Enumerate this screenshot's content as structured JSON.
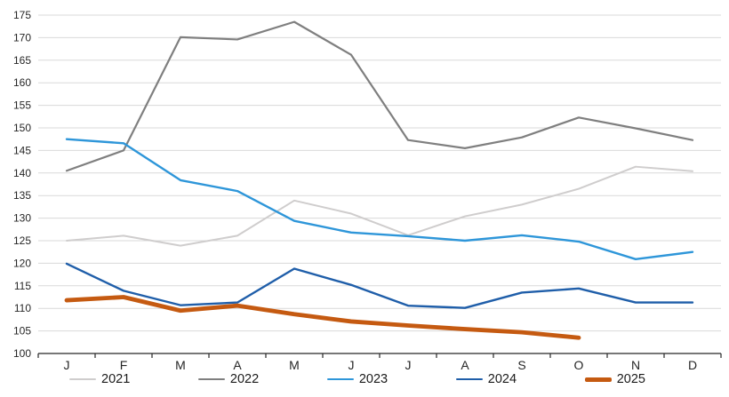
{
  "chart_data": {
    "type": "line",
    "title": "",
    "xlabel": "",
    "ylabel": "",
    "categories": [
      "J",
      "F",
      "M",
      "A",
      "M",
      "J",
      "J",
      "A",
      "S",
      "O",
      "N",
      "D"
    ],
    "series": [
      {
        "name": "2021",
        "color": "#cfcdcd",
        "stroke_width": 2,
        "values": [
          125,
          126.1,
          123.9,
          126.1,
          133.9,
          131,
          126.2,
          130.4,
          133,
          136.5,
          141.4,
          140.4
        ]
      },
      {
        "name": "2022",
        "color": "#7f7f7f",
        "stroke_width": 2.2,
        "values": [
          140.5,
          145,
          170.1,
          169.6,
          173.5,
          166.2,
          147.3,
          145.5,
          147.9,
          152.3,
          149.9,
          147.3
        ]
      },
      {
        "name": "2023",
        "color": "#2e96d9",
        "stroke_width": 2.4,
        "values": [
          147.5,
          146.6,
          138.4,
          136,
          129.4,
          126.8,
          126,
          125,
          126.2,
          124.8,
          120.9,
          122.5
        ]
      },
      {
        "name": "2024",
        "color": "#1f5ea9",
        "stroke_width": 2.4,
        "values": [
          119.9,
          113.9,
          110.7,
          111.3,
          118.8,
          115.2,
          110.6,
          110.1,
          113.5,
          114.4,
          111.3,
          111.3
        ]
      },
      {
        "name": "2025",
        "color": "#c55a11",
        "stroke_width": 4.8,
        "values": [
          111.8,
          112.5,
          109.5,
          110.6,
          108.7,
          107.1,
          106.2,
          105.4,
          104.7,
          103.5,
          null,
          null
        ]
      }
    ],
    "ylim": [
      100,
      175
    ],
    "ytick_step": 5,
    "y_tick_labels": [
      "100",
      "105",
      "110",
      "115",
      "120",
      "125",
      "130",
      "135",
      "140",
      "145",
      "150",
      "155",
      "160",
      "165",
      "170",
      "175"
    ],
    "x_tick_labels": [
      "J",
      "F",
      "M",
      "A",
      "M",
      "J",
      "J",
      "A",
      "S",
      "O",
      "N",
      "D"
    ],
    "grid": true,
    "legend_position": "bottom",
    "colors": {
      "gridline": "#d9d9d9",
      "axis_line": "#262626",
      "tick_label": "#262626"
    }
  }
}
